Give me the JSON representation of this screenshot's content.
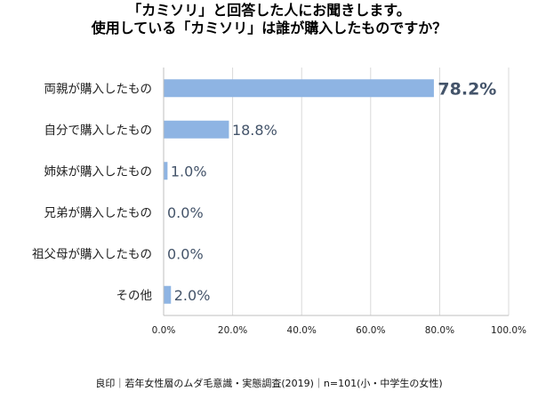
{
  "title": {
    "line1": "「カミソリ」と回答した人にお聞きします。",
    "line2": "使用している「カミソリ」は誰が購入したものですか？"
  },
  "source": "良印｜若年女性層のムダ毛意識・実態調査(2019)｜n=101(小・中学生の女性)",
  "colors": {
    "bar": "#8eb4e3",
    "highlight_label": "#d92323",
    "value_label": "#44546a",
    "axis": "#bfbfbf",
    "grid": "#d9d9d9"
  },
  "chart_data": {
    "type": "bar",
    "orientation": "horizontal",
    "categories": [
      "両親が購入したもの",
      "自分で購入したもの",
      "姉妹が購入したもの",
      "兄弟が購入したもの",
      "祖父母が購入したもの",
      "その他"
    ],
    "values": [
      78.2,
      18.8,
      1.0,
      0.0,
      0.0,
      2.0
    ],
    "value_labels": [
      "78.2%",
      "18.8%",
      "1.0%",
      "0.0%",
      "0.0%",
      "2.0%"
    ],
    "highlight_index": 0,
    "xlim": [
      0,
      100
    ],
    "x_ticks": [
      0,
      20,
      40,
      60,
      80,
      100
    ],
    "x_tick_labels": [
      "0.0%",
      "20.0%",
      "40.0%",
      "60.0%",
      "80.0%",
      "100.0%"
    ],
    "grid": true,
    "legend": "none"
  }
}
